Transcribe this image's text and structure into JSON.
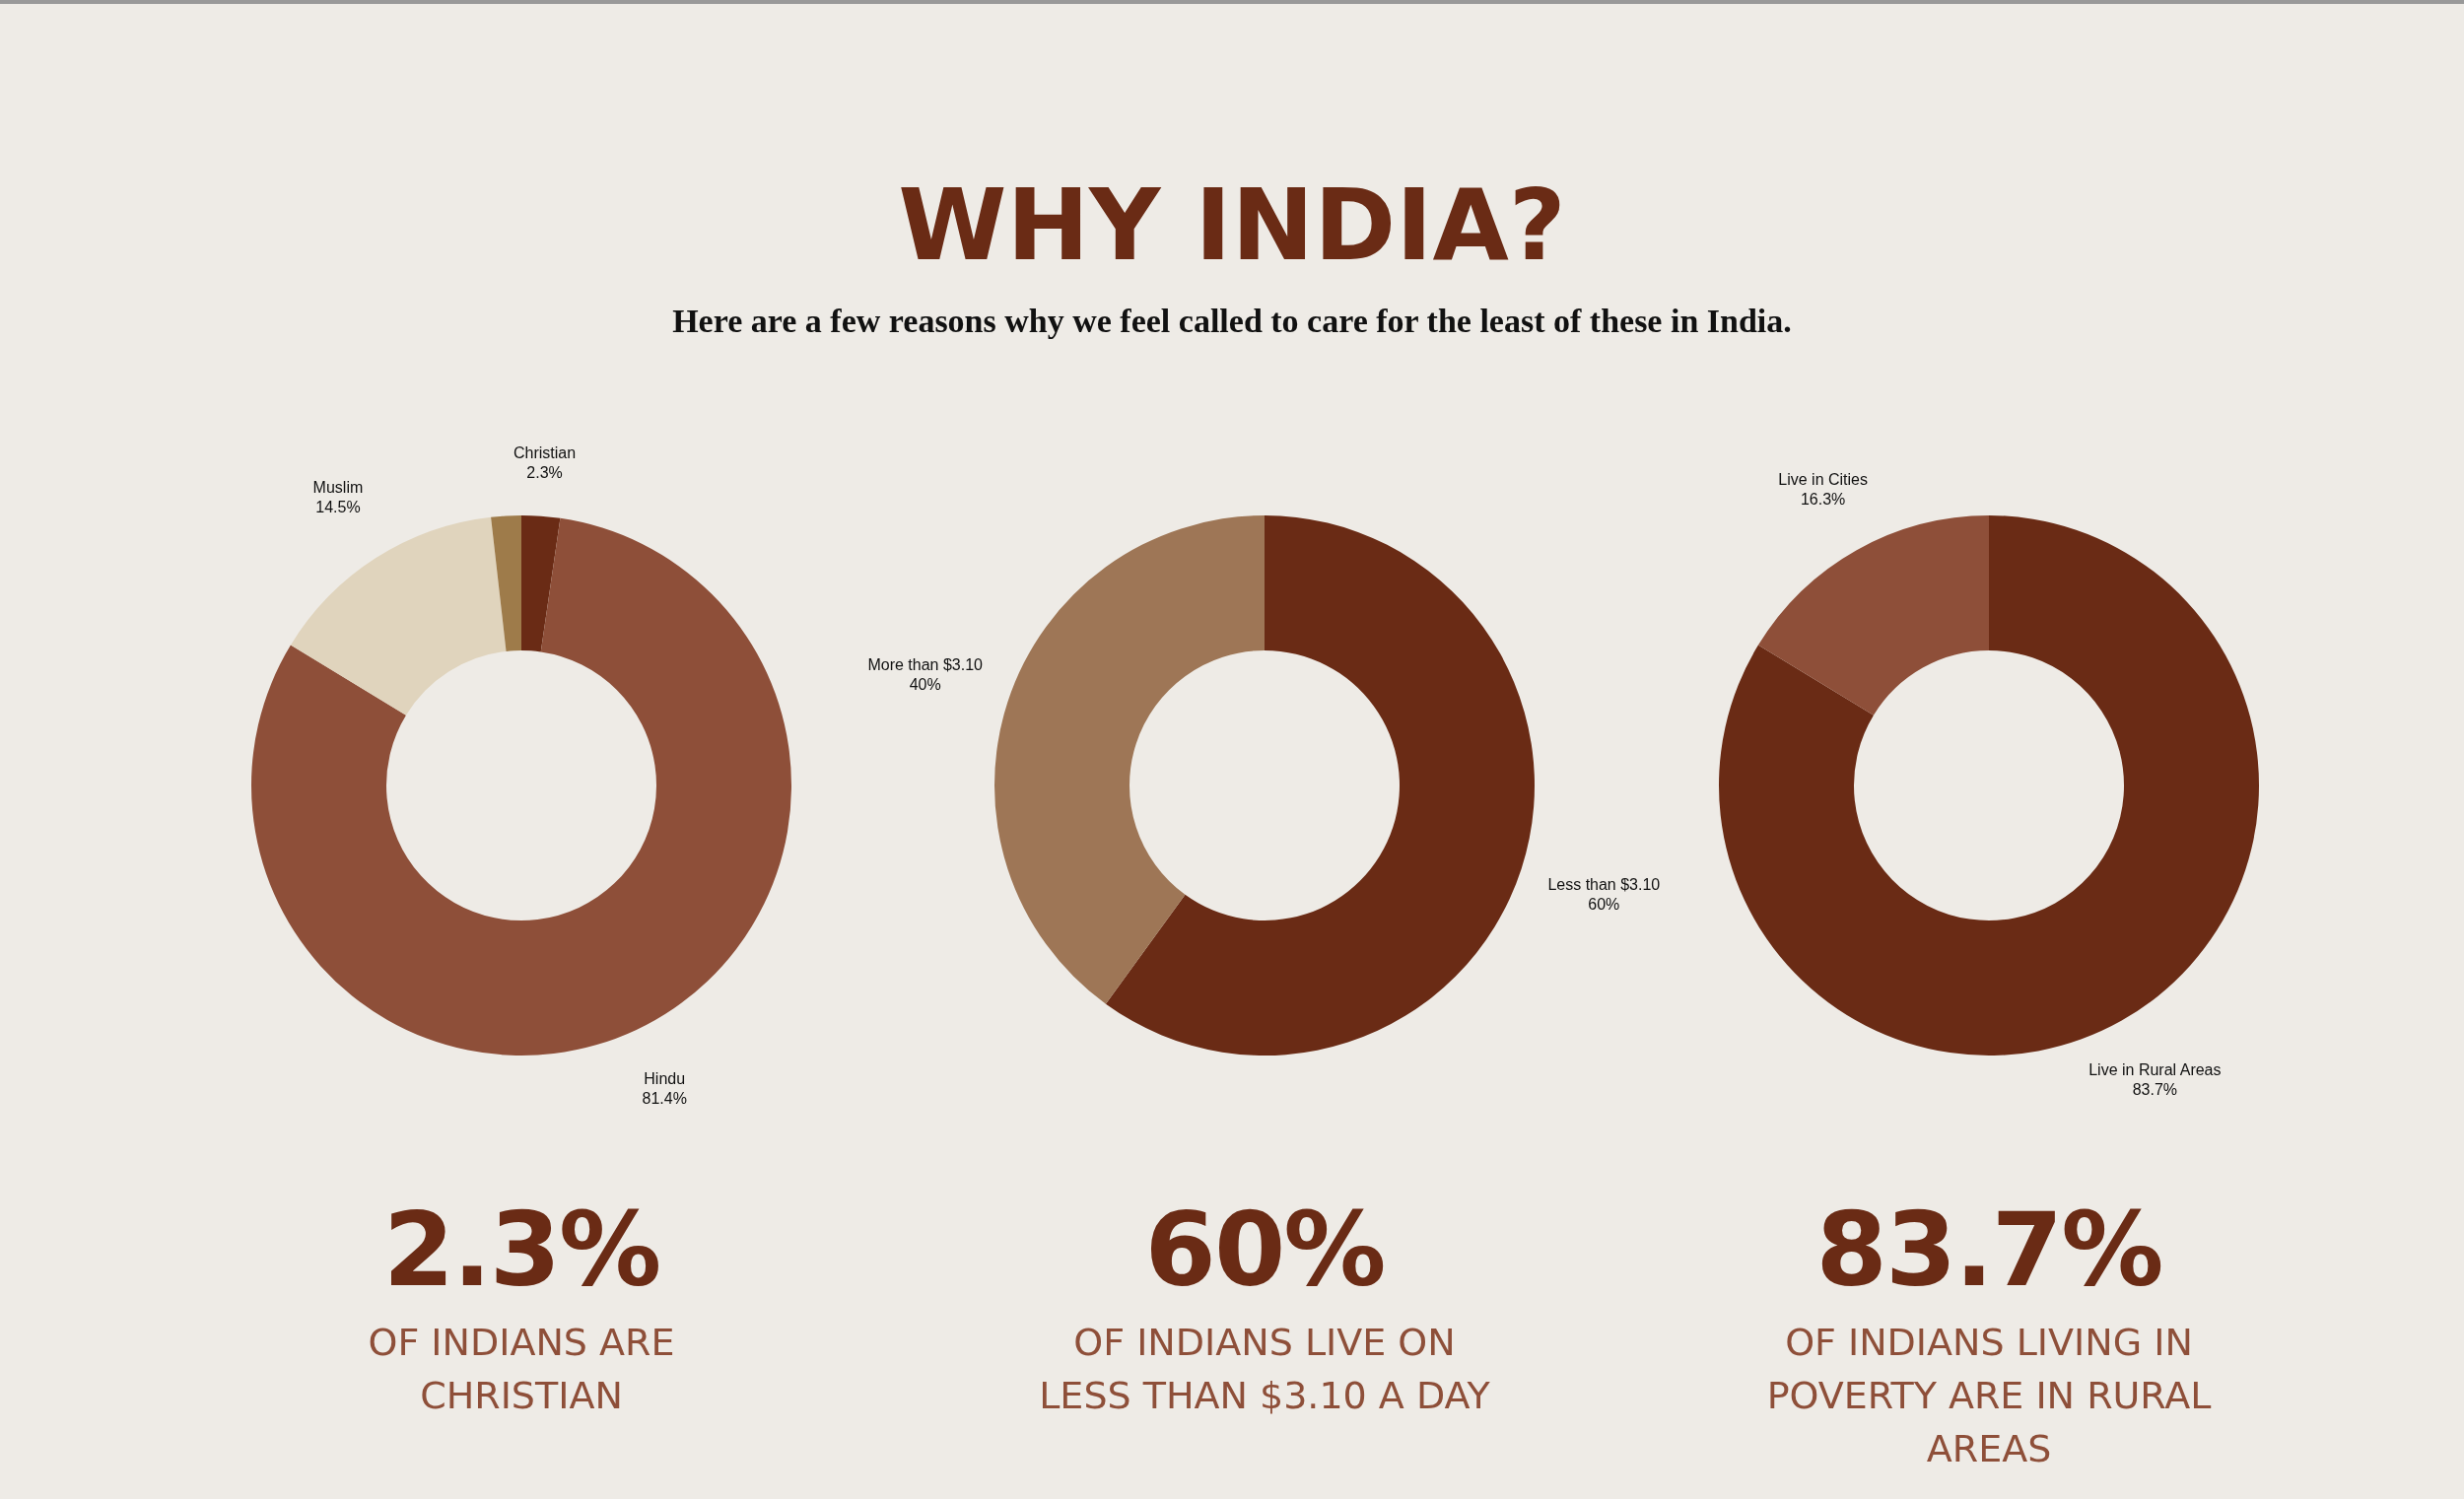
{
  "chart_data": [
    {
      "type": "donut",
      "categories": [
        "Christian",
        "Hindu",
        "Muslim",
        null
      ],
      "values": [
        2.3,
        81.4,
        14.5,
        1.8
      ],
      "colors": [
        "#6a2b15",
        "#8e4f39",
        "#e0d4bd",
        "#9e7b4a"
      ],
      "value_labels": [
        "2.3%",
        "81.4%",
        "14.5%",
        null
      ],
      "annotations": [
        "2.3%",
        "OF INDIANS ARE CHRISTIAN"
      ]
    },
    {
      "type": "donut",
      "title": "WHY INDIA?",
      "subtitle": "Here are a few reasons why we feel called to care for the least of these in India.",
      "categories": [
        "Less than $3.10",
        "More than $3.10"
      ],
      "values": [
        60,
        40
      ],
      "colors": [
        "#6a2b15",
        "#9e7656"
      ],
      "value_labels": [
        "60%",
        "40%"
      ],
      "annotations": [
        "60%",
        "OF INDIANS LIVE ON LESS THAN $3.10 A DAY"
      ]
    },
    {
      "type": "donut",
      "categories": [
        "Live in Rural Areas",
        "Live in Cities"
      ],
      "values": [
        83.7,
        16.3
      ],
      "colors": [
        "#6a2b15",
        "#8e4f39"
      ],
      "value_labels": [
        "83.7%",
        "16.3%"
      ],
      "annotations": [
        "83.7%",
        "OF INDIANS LIVING IN POVERTY ARE IN RURAL AREAS"
      ]
    }
  ]
}
